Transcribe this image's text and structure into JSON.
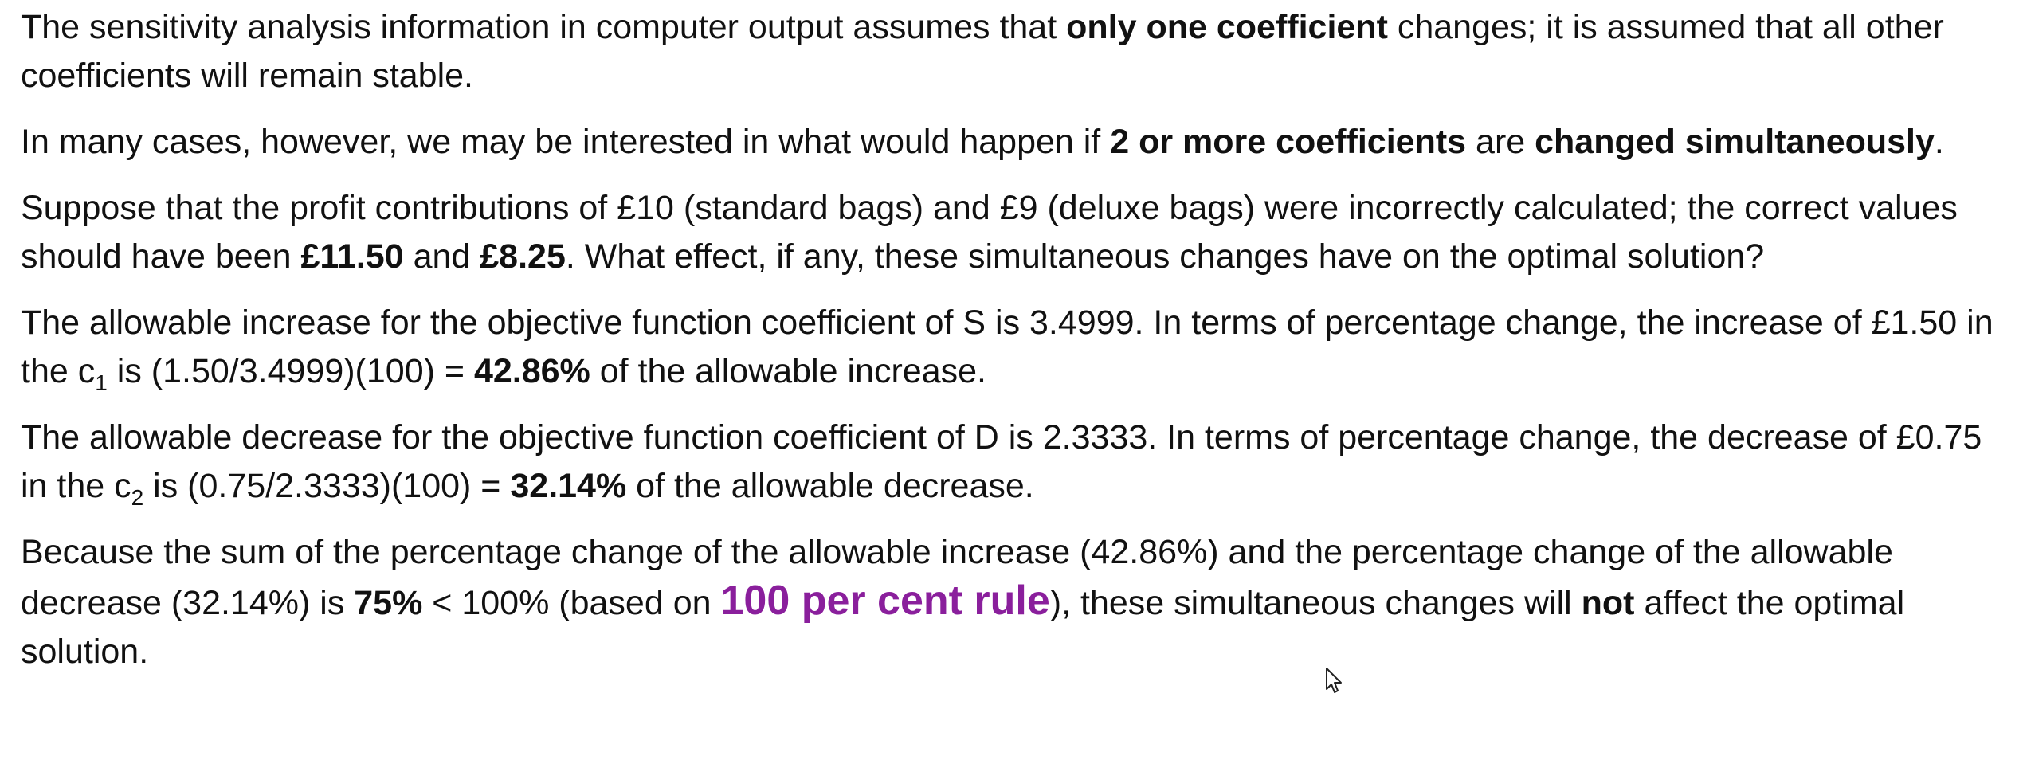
{
  "paragraphs": {
    "p1": {
      "t1": "The sensitivity analysis information in computer output assumes that ",
      "b1": "only one coefficient",
      "t2": " changes; it is assumed that all other coefficients will remain stable."
    },
    "p2": {
      "t1": "In many cases, however, we may be interested in what would happen if ",
      "b1": "2 or more coefficients",
      "t2": " are ",
      "b2": "changed simultaneously",
      "t3": "."
    },
    "p3": {
      "t1": "Suppose that the profit contributions of £10 (standard bags) and £9 (deluxe bags) were incorrectly calculated; the correct values should have been ",
      "b1": "£11.50",
      "t2": " and ",
      "b2": "£8.25",
      "t3": ". What effect, if any, these simultaneous changes have on the optimal solution?"
    },
    "p4": {
      "t1": "The allowable increase for the objective function coefficient of S is 3.4999. In terms of percentage change, the increase of £1.50 in the c",
      "sub": "1",
      "t2": " is (1.50/3.4999)(100) = ",
      "b1": "42.86%",
      "t3": " of the allowable increase."
    },
    "p5": {
      "t1": "The allowable decrease for the objective function coefficient of D is 2.3333. In terms of percentage change, the decrease of £0.75 in the c",
      "sub": "2",
      "t2": " is (0.75/2.3333)(100) = ",
      "b1": "32.14%",
      "t3": " of the allowable decrease."
    },
    "p6": {
      "t1": "Because the sum of the percentage change of the allowable increase (42.86%) and the percentage change of the allowable decrease (32.14%) is ",
      "b1": "75%",
      "t2": " < 100% (based on ",
      "highlight": "100 per cent rule",
      "t3": "), these simultaneous changes will ",
      "b2": "not",
      "t4": " affect the optimal solution."
    }
  },
  "colors": {
    "text": "#111111",
    "highlight": "#8a1f9c",
    "background": "#ffffff"
  },
  "icons": {
    "cursor": "mouse-pointer-icon"
  }
}
